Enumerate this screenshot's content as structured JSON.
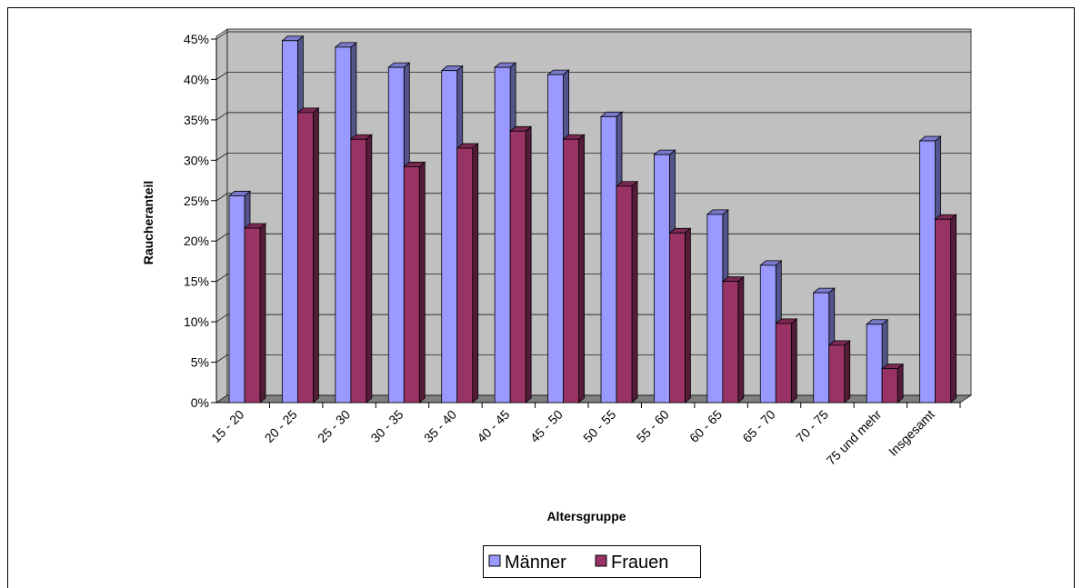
{
  "chart_data": {
    "type": "bar3d",
    "x_label": "Altersgruppe",
    "y_label": "Raucheranteil",
    "categories": [
      "15 - 20",
      "20 - 25",
      "25 - 30",
      "30 - 35",
      "35 - 40",
      "40 - 45",
      "45 - 50",
      "50 - 55",
      "55 - 60",
      "60 - 65",
      "65 - 70",
      "70 - 75",
      "75 und mehr",
      "Insgesamt"
    ],
    "series": [
      {
        "name": "Männer",
        "color": "#9999ff",
        "values": [
          25.6,
          44.8,
          44.0,
          41.5,
          41.1,
          41.5,
          40.6,
          35.4,
          30.7,
          23.3,
          17.0,
          13.6,
          9.7,
          32.4
        ]
      },
      {
        "name": "Frauen",
        "color": "#993366",
        "values": [
          21.6,
          35.9,
          32.6,
          29.2,
          31.5,
          33.6,
          32.6,
          26.8,
          21.0,
          15.0,
          9.8,
          7.1,
          4.2,
          22.7
        ]
      }
    ],
    "ylim": [
      0,
      45
    ],
    "yticks": [
      {
        "value": 0,
        "label": "0%"
      },
      {
        "value": 5,
        "label": "5%"
      },
      {
        "value": 10,
        "label": "10%"
      },
      {
        "value": 15,
        "label": "15%"
      },
      {
        "value": 20,
        "label": "20%"
      },
      {
        "value": 25,
        "label": "25%"
      },
      {
        "value": 30,
        "label": "30%"
      },
      {
        "value": 35,
        "label": "35%"
      },
      {
        "value": 40,
        "label": "40%"
      },
      {
        "value": 45,
        "label": "45%"
      }
    ],
    "grid": true
  }
}
